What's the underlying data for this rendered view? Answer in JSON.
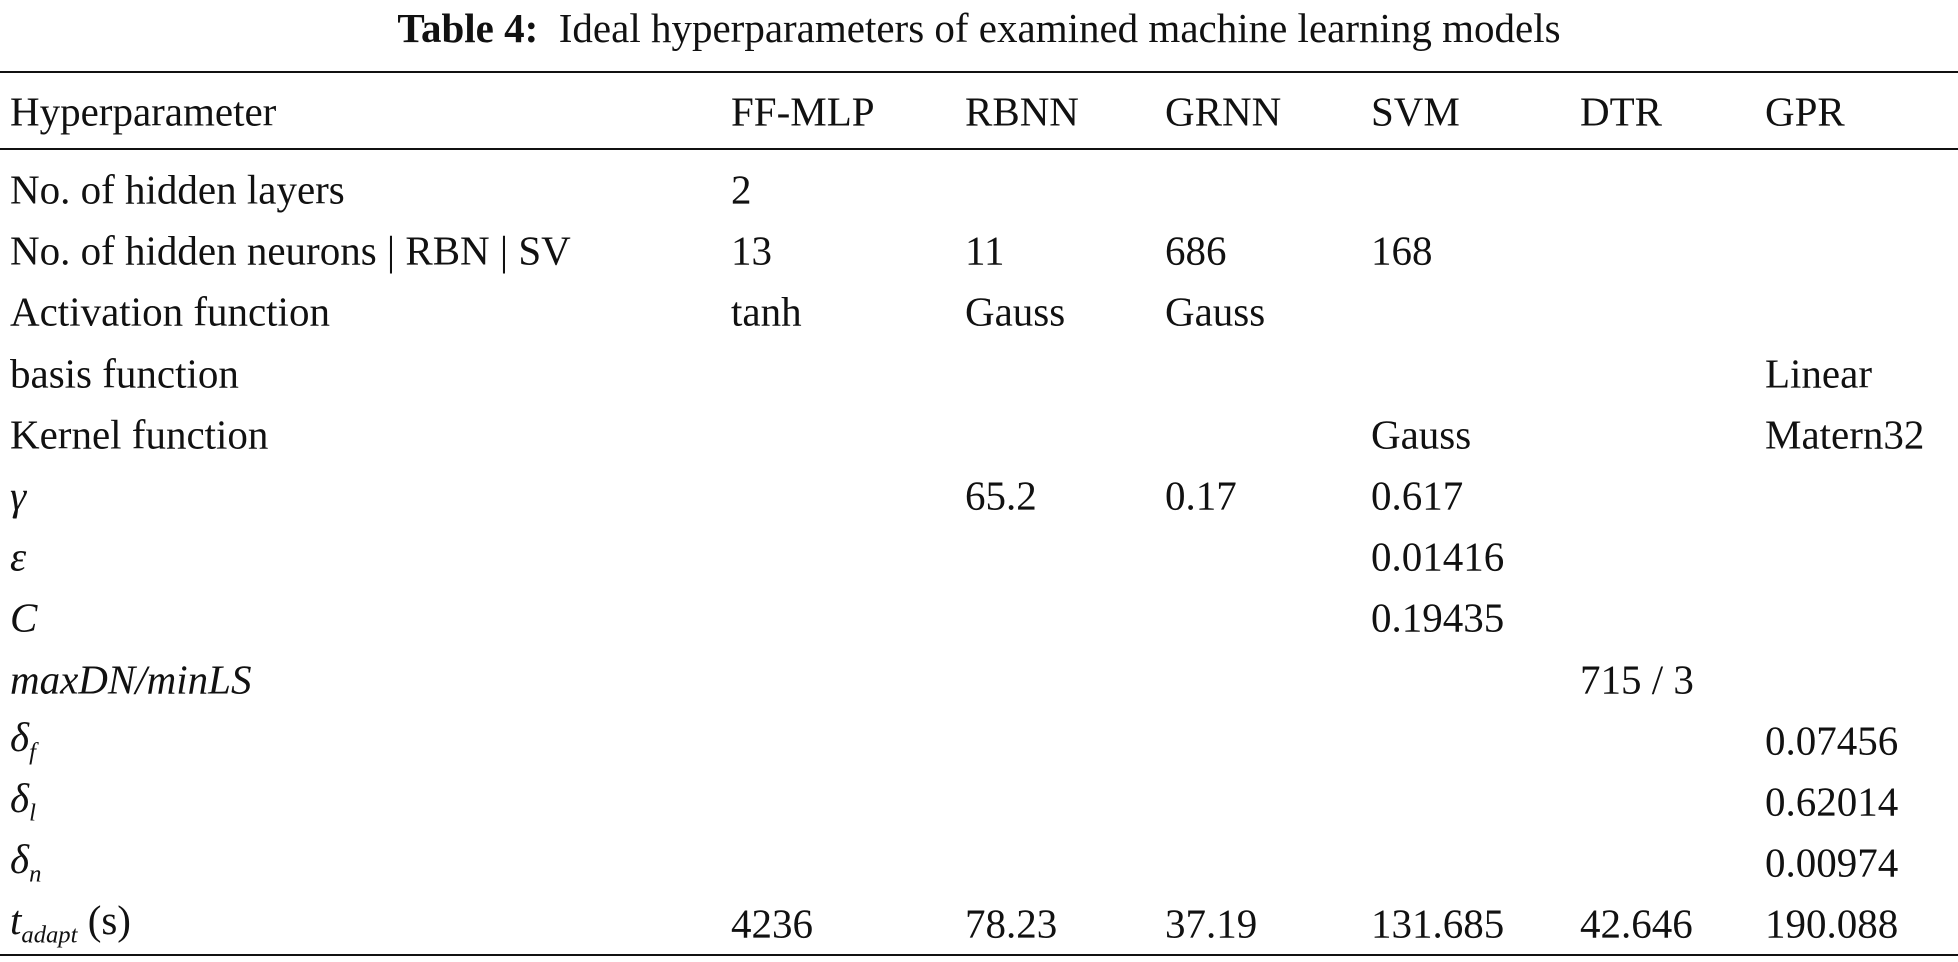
{
  "caption": {
    "label": "Table 4:",
    "text": "Ideal hyperparameters of examined machine learning models"
  },
  "table": {
    "header": [
      "Hyperparameter",
      "FF-MLP",
      "RBNN",
      "GRNN",
      "SVM",
      "DTR",
      "GPR"
    ],
    "rows": [
      {
        "label": "No. of hidden layers",
        "cells": [
          "2",
          null,
          null,
          null,
          null,
          null
        ]
      },
      {
        "label": "No. of hidden neurons | RBN | SV",
        "cells": [
          "13",
          "11",
          "686",
          "168",
          null,
          null
        ]
      },
      {
        "label": "Activation function",
        "cells": [
          "tanh",
          "Gauss",
          "Gauss",
          null,
          null,
          null
        ]
      },
      {
        "label": "basis function",
        "cells": [
          null,
          null,
          null,
          null,
          null,
          "Linear"
        ]
      },
      {
        "label": "Kernel function",
        "cells": [
          null,
          null,
          null,
          "Gauss",
          null,
          "Matern32"
        ]
      },
      {
        "label": "γ",
        "italic": true,
        "cells": [
          null,
          "65.2",
          "0.17",
          "0.617",
          null,
          null
        ]
      },
      {
        "label": "ε",
        "italic": true,
        "cells": [
          null,
          null,
          null,
          "0.01416",
          null,
          null
        ]
      },
      {
        "label": "C",
        "italic": true,
        "cells": [
          null,
          null,
          null,
          "0.19435",
          null,
          null
        ]
      },
      {
        "label": "maxDN/minLS",
        "italic": true,
        "cells": [
          null,
          null,
          null,
          null,
          "715 / 3",
          null
        ]
      },
      {
        "label": "δ",
        "sub": "f",
        "italic": true,
        "cells": [
          null,
          null,
          null,
          null,
          null,
          "0.07456"
        ]
      },
      {
        "label": "δ",
        "sub": "l",
        "italic": true,
        "cells": [
          null,
          null,
          null,
          null,
          null,
          "0.62014"
        ]
      },
      {
        "label": "δ",
        "sub": "n",
        "italic": true,
        "cells": [
          null,
          null,
          null,
          null,
          null,
          "0.00974"
        ]
      },
      {
        "label": "t",
        "sub": "adapt",
        "unit": "(s)",
        "italic": true,
        "cells": [
          "4236",
          "78.23",
          "37.19",
          "131.685",
          "42.646",
          "190.088"
        ]
      }
    ]
  }
}
